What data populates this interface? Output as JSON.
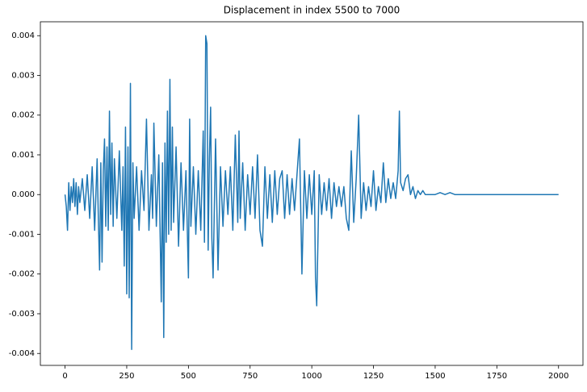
{
  "chart_data": {
    "type": "line",
    "title": "Displacement in index 5500 to 7000",
    "color": "#1f77b4",
    "xlim": [
      -100,
      2099
    ],
    "ylim": [
      -0.0043,
      0.00435
    ],
    "xticks": [
      0,
      250,
      500,
      750,
      1000,
      1250,
      1500,
      1750,
      2000
    ],
    "yticks": [
      -0.004,
      -0.003,
      -0.002,
      -0.001,
      {
        "value": 0,
        "label": "0.000"
      },
      0.001,
      0.002,
      0.003,
      0.004
    ],
    "x": [
      0,
      5,
      10,
      15,
      20,
      25,
      30,
      35,
      40,
      45,
      50,
      55,
      60,
      70,
      80,
      90,
      100,
      110,
      120,
      130,
      135,
      140,
      145,
      150,
      155,
      160,
      165,
      170,
      175,
      180,
      185,
      190,
      195,
      200,
      210,
      220,
      230,
      235,
      240,
      245,
      250,
      255,
      260,
      265,
      270,
      275,
      280,
      290,
      300,
      310,
      320,
      330,
      340,
      350,
      355,
      360,
      370,
      380,
      390,
      395,
      400,
      405,
      410,
      415,
      420,
      425,
      430,
      435,
      440,
      450,
      460,
      470,
      480,
      490,
      500,
      505,
      510,
      520,
      530,
      540,
      550,
      560,
      565,
      570,
      575,
      580,
      585,
      590,
      595,
      600,
      610,
      620,
      630,
      640,
      650,
      660,
      670,
      680,
      690,
      700,
      705,
      710,
      720,
      730,
      740,
      750,
      760,
      770,
      780,
      790,
      800,
      810,
      820,
      830,
      840,
      850,
      860,
      870,
      880,
      890,
      900,
      910,
      920,
      930,
      940,
      950,
      960,
      970,
      980,
      990,
      1000,
      1010,
      1015,
      1020,
      1030,
      1040,
      1050,
      1060,
      1070,
      1080,
      1090,
      1100,
      1110,
      1120,
      1130,
      1140,
      1150,
      1160,
      1170,
      1180,
      1190,
      1200,
      1210,
      1220,
      1230,
      1240,
      1250,
      1260,
      1270,
      1280,
      1290,
      1300,
      1310,
      1320,
      1330,
      1340,
      1350,
      1355,
      1360,
      1370,
      1380,
      1390,
      1400,
      1410,
      1420,
      1430,
      1440,
      1450,
      1460,
      1480,
      1500,
      1520,
      1540,
      1560,
      1580,
      1600,
      1650,
      1700,
      1800,
      1900,
      2000
    ],
    "values": [
      0.0,
      -0.0003,
      -0.0009,
      0.0003,
      -0.0004,
      0.0002,
      -0.0002,
      0.0004,
      -0.0003,
      0.0003,
      -0.0005,
      0.0002,
      -0.0002,
      0.0004,
      -0.0004,
      0.0005,
      -0.0006,
      0.0007,
      -0.0009,
      0.0009,
      -0.0006,
      -0.0019,
      0.0008,
      -0.0017,
      0.0006,
      0.0014,
      -0.0008,
      0.0012,
      -0.0009,
      0.0021,
      -0.0005,
      0.0013,
      -0.0008,
      0.0009,
      -0.0006,
      0.0011,
      -0.0009,
      0.0007,
      -0.0018,
      0.0017,
      -0.0025,
      0.0012,
      -0.0026,
      0.0028,
      -0.0039,
      0.0008,
      -0.0006,
      0.0007,
      -0.0009,
      0.0006,
      -0.0004,
      0.0019,
      -0.0009,
      0.0005,
      -0.0006,
      0.0018,
      -0.0008,
      0.001,
      -0.0027,
      0.0008,
      -0.0036,
      0.0013,
      -0.0012,
      0.0021,
      -0.001,
      0.0029,
      -0.0009,
      0.0017,
      -0.0007,
      0.0012,
      -0.0013,
      0.0008,
      -0.0009,
      0.0006,
      -0.0021,
      0.0019,
      -0.0008,
      0.0007,
      -0.001,
      0.0006,
      -0.0009,
      0.0016,
      -0.0012,
      0.004,
      0.0038,
      -0.0014,
      0.0009,
      0.0022,
      -0.0011,
      -0.0021,
      0.0014,
      -0.0019,
      0.0007,
      -0.0008,
      0.0006,
      -0.0005,
      0.0007,
      -0.0009,
      0.0015,
      -0.0007,
      0.0016,
      -0.0006,
      0.0008,
      -0.0009,
      0.0005,
      -0.0005,
      0.0007,
      -0.0006,
      0.001,
      -0.0009,
      -0.0013,
      0.0007,
      -0.0006,
      0.0005,
      -0.0007,
      0.0006,
      -0.0005,
      0.0004,
      0.0006,
      -0.0006,
      0.0005,
      -0.0005,
      0.0004,
      -0.0004,
      0.0005,
      0.0014,
      -0.002,
      0.0006,
      -0.0006,
      0.0005,
      -0.0005,
      0.0006,
      -0.0021,
      -0.0028,
      0.0005,
      -0.0005,
      0.0003,
      -0.0004,
      0.0004,
      -0.0006,
      0.0003,
      -0.0003,
      0.0002,
      -0.0003,
      0.0002,
      -0.0006,
      -0.0009,
      0.0011,
      -0.0007,
      0.0004,
      0.002,
      -0.0006,
      0.0003,
      -0.0004,
      0.0002,
      -0.0003,
      0.0006,
      -0.0004,
      0.0002,
      -0.0002,
      0.0008,
      -0.0002,
      0.0004,
      -0.0001,
      0.0003,
      -0.0001,
      0.0006,
      0.0021,
      0.0003,
      0.0001,
      0.0004,
      0.0005,
      0.0,
      0.0002,
      -0.0001,
      0.0001,
      0.0,
      0.0001,
      0.0,
      0.0,
      0.0,
      5e-05,
      0.0,
      5e-05,
      0.0,
      0.0,
      0.0,
      0.0,
      0.0,
      0.0,
      0.0
    ]
  }
}
